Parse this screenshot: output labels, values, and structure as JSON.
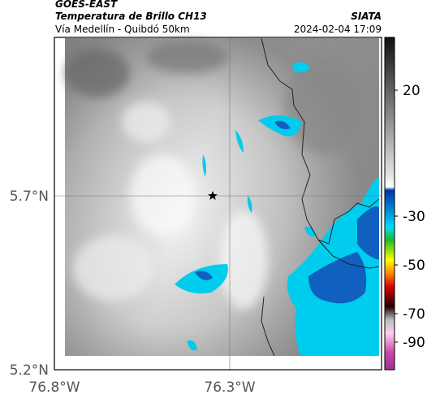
{
  "header": {
    "satellite": "GOES-EAST",
    "product": "Temperatura de Brillo CH13",
    "region": "Vía Medellín - Quibdó 50km",
    "source": "SIATA",
    "timestamp": "2024-02-04 17:09"
  },
  "map": {
    "lat_labels": [
      "5.7°N",
      "5.2°N"
    ],
    "lon_labels": [
      "76.8°W",
      "76.3°W"
    ]
  },
  "colorbar": {
    "ticks": [
      "20",
      "-30",
      "-50",
      "-70",
      "-90"
    ]
  }
}
